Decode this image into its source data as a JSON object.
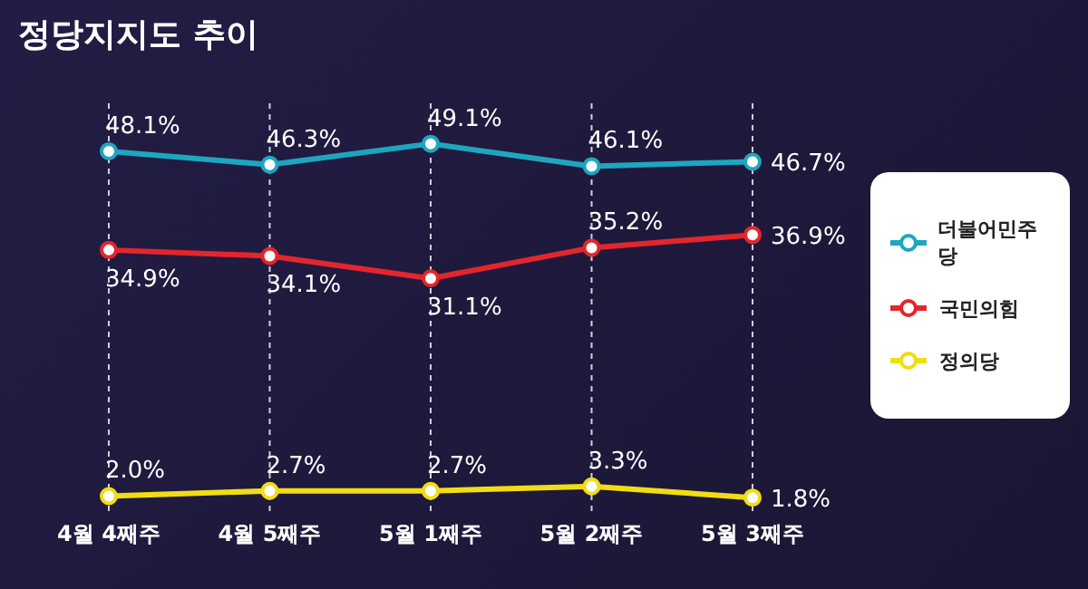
{
  "chart_data": {
    "type": "line",
    "title": "정당지지도 추이",
    "categories": [
      "4월 4째주",
      "4월 5째주",
      "5월 1째주",
      "5월 2째주",
      "5월 3째주"
    ],
    "series": [
      {
        "name": "더불어민주당",
        "color": "#1ea6bf",
        "values": [
          48.1,
          46.3,
          49.1,
          46.1,
          46.7
        ],
        "value_labels": [
          "48.1%",
          "46.3%",
          "49.1%",
          "46.1%",
          "46.7%"
        ]
      },
      {
        "name": "국민의힘",
        "color": "#e3262d",
        "values": [
          34.9,
          34.1,
          31.1,
          35.2,
          36.9
        ],
        "value_labels": [
          "34.9%",
          "34.1%",
          "31.1%",
          "35.2%",
          "36.9%"
        ]
      },
      {
        "name": "정의당",
        "color": "#f2dc14",
        "values": [
          2.0,
          2.7,
          2.7,
          3.3,
          1.8
        ],
        "value_labels": [
          "2.0%",
          "2.7%",
          "2.7%",
          "3.3%",
          "1.8%"
        ]
      }
    ],
    "grid": "x",
    "legend": "right",
    "marker": "circle",
    "line_style": "solid",
    "tick_labels": "x"
  }
}
